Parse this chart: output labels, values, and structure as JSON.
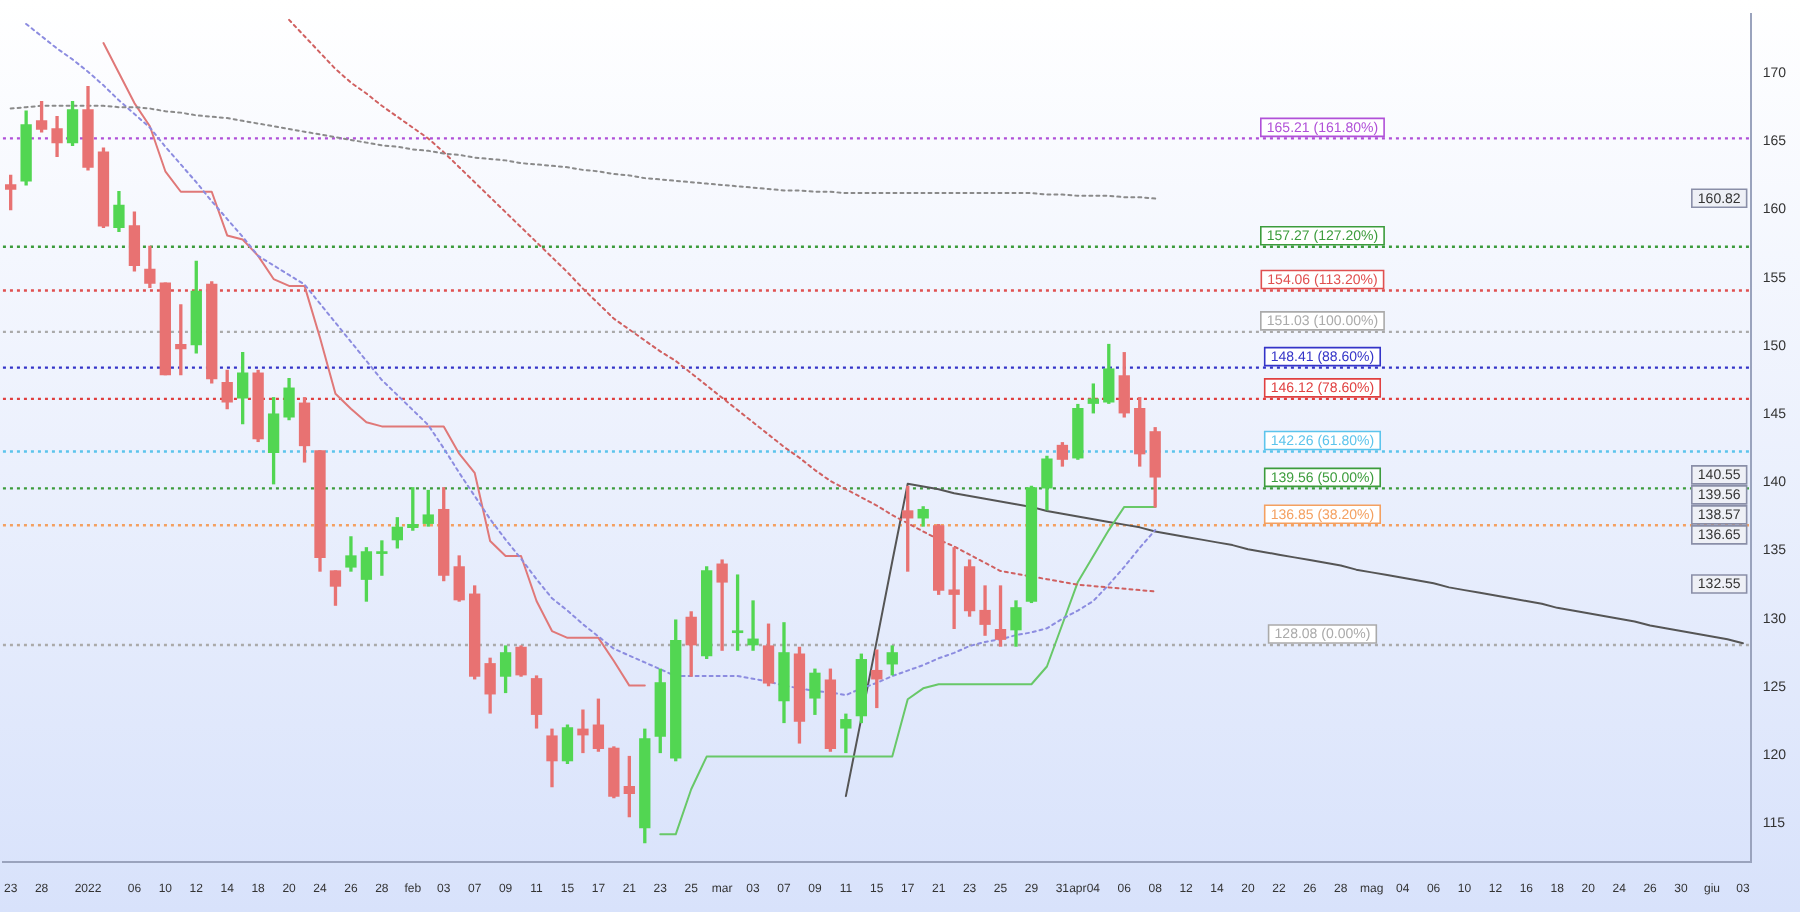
{
  "chart_data": {
    "type": "candlestick",
    "categories": [
      "23",
      null,
      "28",
      null,
      null,
      "2022",
      null,
      null,
      "06",
      null,
      "10",
      null,
      "12",
      null,
      "14",
      null,
      "18",
      null,
      "20",
      null,
      "24",
      null,
      "26",
      null,
      "28",
      null,
      "feb",
      null,
      "03",
      null,
      "07",
      null,
      "09",
      null,
      "11",
      null,
      "15",
      null,
      "17",
      null,
      "21",
      null,
      "23",
      null,
      "25",
      null,
      "mar",
      null,
      "03",
      null,
      "07",
      null,
      "09",
      null,
      "11",
      null,
      "15",
      null,
      "17",
      null,
      "21",
      null,
      "23",
      null,
      "25",
      null,
      "29",
      null,
      "31",
      "apr",
      "04",
      null,
      "06",
      null,
      "08",
      null,
      "12",
      null,
      "14",
      null,
      "20",
      null,
      "22",
      null,
      "26",
      null,
      "28",
      null,
      "mag",
      null,
      "04",
      null,
      "06",
      null,
      "10",
      null,
      "12",
      null,
      "16",
      null,
      "18",
      null,
      "20",
      null,
      "24",
      null,
      "26",
      null,
      "30",
      null,
      "giu",
      null,
      "03"
    ],
    "ohlc": [
      [
        161.8,
        162.5,
        160.0,
        161.5
      ],
      [
        162.1,
        167.2,
        161.8,
        166.2
      ],
      [
        166.5,
        167.9,
        165.7,
        165.9
      ],
      [
        165.9,
        166.8,
        163.9,
        164.9
      ],
      [
        164.9,
        167.9,
        164.7,
        167.3
      ],
      [
        167.3,
        169.0,
        162.9,
        163.1
      ],
      [
        164.2,
        164.5,
        158.7,
        158.8
      ],
      [
        158.7,
        161.3,
        158.4,
        160.3
      ],
      [
        158.8,
        159.8,
        155.5,
        155.9
      ],
      [
        155.6,
        157.3,
        154.3,
        154.6
      ],
      [
        154.6,
        154.6,
        147.9,
        147.9
      ],
      [
        150.1,
        153.0,
        147.9,
        149.8
      ],
      [
        150.1,
        156.2,
        149.5,
        154.0
      ],
      [
        154.5,
        154.7,
        147.3,
        147.6
      ],
      [
        147.3,
        148.2,
        145.4,
        145.9
      ],
      [
        146.2,
        149.5,
        144.3,
        148.0
      ],
      [
        148.0,
        148.2,
        143.0,
        143.2
      ],
      [
        142.2,
        146.2,
        139.9,
        145.0
      ],
      [
        144.8,
        147.6,
        144.6,
        146.9
      ],
      [
        145.8,
        146.2,
        141.5,
        142.7
      ],
      [
        142.3,
        142.3,
        133.5,
        134.5
      ],
      [
        133.5,
        133.5,
        131.0,
        132.4
      ],
      [
        133.8,
        136.0,
        133.5,
        134.6
      ],
      [
        132.9,
        135.2,
        131.3,
        134.9
      ],
      [
        134.8,
        135.7,
        133.2,
        134.9
      ],
      [
        135.8,
        137.4,
        135.2,
        136.7
      ],
      [
        136.7,
        139.6,
        136.5,
        136.9
      ],
      [
        137.0,
        139.4,
        136.8,
        137.6
      ],
      [
        138.0,
        139.6,
        132.8,
        133.2
      ],
      [
        133.8,
        134.6,
        131.3,
        131.4
      ],
      [
        131.8,
        132.4,
        125.6,
        125.8
      ],
      [
        126.7,
        127.1,
        123.1,
        124.5
      ],
      [
        125.8,
        128.0,
        124.6,
        127.5
      ],
      [
        127.9,
        128.0,
        125.8,
        125.9
      ],
      [
        125.6,
        125.8,
        122.0,
        123.0
      ],
      [
        121.4,
        121.9,
        117.7,
        119.6
      ],
      [
        119.6,
        122.2,
        119.4,
        122.0
      ],
      [
        121.9,
        123.3,
        120.2,
        121.5
      ],
      [
        122.2,
        124.1,
        120.3,
        120.5
      ],
      [
        120.5,
        120.6,
        116.9,
        117.0
      ],
      [
        117.7,
        119.9,
        115.5,
        117.2
      ],
      [
        114.7,
        121.9,
        113.6,
        121.2
      ],
      [
        121.4,
        126.3,
        120.2,
        125.3
      ],
      [
        119.8,
        129.9,
        119.6,
        128.4
      ],
      [
        130.1,
        130.5,
        125.8,
        128.1
      ],
      [
        127.3,
        133.8,
        127.1,
        133.5
      ],
      [
        134.0,
        134.3,
        127.7,
        132.7
      ],
      [
        129.0,
        133.2,
        127.7,
        129.1
      ],
      [
        128.1,
        131.3,
        127.7,
        128.5
      ],
      [
        128.0,
        129.6,
        125.1,
        125.3
      ],
      [
        124.0,
        129.7,
        122.4,
        127.5
      ],
      [
        127.4,
        127.9,
        120.9,
        122.5
      ],
      [
        124.2,
        126.3,
        123.0,
        126.0
      ],
      [
        125.5,
        126.3,
        120.3,
        120.5
      ],
      [
        122.0,
        123.0,
        120.2,
        122.6
      ],
      [
        122.9,
        127.4,
        122.4,
        127.0
      ],
      [
        126.2,
        127.7,
        123.5,
        125.6
      ],
      [
        126.7,
        128.0,
        125.9,
        127.5
      ],
      [
        137.9,
        139.7,
        133.5,
        137.4
      ],
      [
        137.4,
        138.2,
        136.8,
        138.0
      ],
      [
        136.8,
        136.9,
        131.8,
        132.1
      ],
      [
        132.1,
        135.2,
        129.3,
        131.8
      ],
      [
        133.8,
        134.3,
        130.2,
        130.6
      ],
      [
        130.6,
        132.4,
        128.8,
        129.6
      ],
      [
        129.2,
        132.4,
        128.0,
        128.5
      ],
      [
        129.2,
        131.3,
        128.0,
        130.8
      ],
      [
        131.3,
        139.7,
        131.2,
        139.6
      ],
      [
        139.6,
        141.9,
        138.0,
        141.7
      ],
      [
        142.7,
        142.9,
        141.2,
        141.7
      ],
      [
        141.8,
        145.7,
        141.7,
        145.4
      ],
      [
        145.8,
        147.2,
        145.1,
        146.1
      ],
      [
        145.9,
        150.1,
        145.8,
        148.3
      ],
      [
        147.8,
        149.5,
        144.8,
        145.1
      ],
      [
        145.4,
        146.2,
        141.2,
        142.1
      ],
      [
        143.7,
        144.0,
        138.2,
        140.4
      ],
      null,
      null,
      null,
      null,
      null,
      null,
      null,
      null,
      null,
      null,
      null,
      null,
      null,
      null,
      null,
      null,
      null,
      null,
      null,
      null,
      null,
      null,
      null,
      null,
      null,
      null,
      null,
      null,
      null,
      null,
      null,
      null,
      null,
      null,
      null,
      null,
      null,
      null
    ],
    "series": [
      {
        "type": "line",
        "color": "#8a8a8a",
        "line_style": "dotted",
        "values": [
          167.4,
          167.5,
          167.6,
          167.6,
          167.6,
          167.6,
          167.6,
          167.5,
          167.5,
          167.4,
          167.2,
          167.1,
          166.9,
          166.8,
          166.7,
          166.5,
          166.3,
          166.1,
          165.9,
          165.7,
          165.5,
          165.3,
          165.1,
          164.9,
          164.7,
          164.6,
          164.4,
          164.3,
          164.1,
          164.0,
          163.8,
          163.7,
          163.6,
          163.4,
          163.3,
          163.2,
          163.1,
          162.9,
          162.8,
          162.6,
          162.5,
          162.3,
          162.2,
          162.1,
          162.0,
          161.9,
          161.8,
          161.7,
          161.6,
          161.5,
          161.4,
          161.4,
          161.3,
          161.3,
          161.2,
          161.2,
          161.2,
          161.2,
          161.2,
          161.2,
          161.2,
          161.2,
          161.2,
          161.2,
          161.2,
          161.2,
          161.2,
          161.1,
          161.1,
          161.0,
          161.0,
          161.0,
          160.9,
          160.9,
          160.8,
          null,
          null,
          null,
          null,
          null,
          null,
          null,
          null,
          null,
          null,
          null,
          null,
          null,
          null,
          null,
          null,
          null,
          null,
          null,
          null,
          null,
          null,
          null,
          null,
          null,
          null,
          null,
          null,
          null,
          null,
          null,
          null,
          null,
          null,
          null,
          null,
          null,
          null
        ]
      },
      {
        "type": "line",
        "color": "#d06060",
        "line_style": "dotted",
        "values": [
          null,
          null,
          null,
          null,
          null,
          null,
          null,
          null,
          null,
          null,
          null,
          null,
          null,
          null,
          null,
          null,
          null,
          null,
          173.9,
          172.7,
          171.5,
          170.3,
          169.3,
          168.5,
          167.6,
          166.8,
          166.0,
          165.2,
          164.2,
          163.1,
          162.0,
          160.9,
          159.8,
          158.7,
          157.6,
          156.5,
          155.4,
          154.2,
          153.1,
          152.0,
          151.2,
          150.4,
          149.6,
          148.9,
          148.0,
          147.1,
          146.2,
          145.3,
          144.4,
          143.5,
          142.6,
          141.8,
          140.9,
          140.1,
          139.5,
          138.9,
          138.3,
          137.6,
          137.0,
          136.4,
          135.8,
          135.3,
          134.7,
          134.1,
          133.5,
          133.3,
          133.1,
          132.9,
          132.7,
          132.5,
          132.4,
          132.3,
          132.2,
          132.1,
          132.0,
          null,
          null,
          null,
          null,
          null,
          null,
          null,
          null,
          null,
          null,
          null,
          null,
          null,
          null,
          null,
          null,
          null,
          null,
          null,
          null,
          null,
          null,
          null,
          null,
          null,
          null,
          null,
          null,
          null,
          null,
          null,
          null,
          null,
          null,
          null,
          null,
          null,
          null
        ]
      },
      {
        "type": "line",
        "color": "#8c8ce0",
        "line_style": "dotted",
        "values": [
          null,
          173.6,
          172.7,
          171.8,
          171.0,
          170.1,
          169.1,
          168.0,
          167.0,
          166.0,
          164.6,
          163.3,
          162.0,
          160.6,
          159.3,
          158.0,
          156.6,
          155.9,
          155.2,
          154.5,
          153.1,
          151.7,
          150.3,
          148.9,
          147.5,
          146.4,
          145.3,
          144.2,
          142.5,
          140.7,
          139.0,
          137.3,
          135.8,
          134.4,
          132.9,
          131.5,
          130.6,
          129.6,
          128.7,
          127.8,
          127.3,
          126.8,
          126.3,
          125.8,
          125.8,
          125.8,
          125.8,
          125.8,
          125.6,
          125.4,
          125.1,
          124.9,
          124.7,
          124.6,
          124.4,
          124.9,
          125.3,
          125.8,
          126.2,
          126.6,
          127.1,
          127.5,
          128.0,
          128.3,
          128.5,
          128.8,
          129.0,
          129.3,
          130.0,
          130.6,
          131.3,
          132.5,
          133.8,
          135.2,
          136.5,
          null,
          null,
          null,
          null,
          null,
          null,
          null,
          null,
          null,
          null,
          null,
          null,
          null,
          null,
          null,
          null,
          null,
          null,
          null,
          null,
          null,
          null,
          null,
          null,
          null,
          null,
          null,
          null,
          null,
          null,
          null,
          null,
          null,
          null,
          null,
          null,
          null,
          null
        ]
      },
      {
        "type": "line",
        "color": "#e07878",
        "line_style": "solid",
        "values": [
          null,
          null,
          null,
          null,
          null,
          null,
          172.2,
          170.0,
          167.8,
          166.1,
          162.8,
          161.3,
          161.3,
          161.3,
          158.1,
          157.8,
          156.6,
          154.9,
          154.4,
          154.4,
          150.6,
          146.5,
          145.4,
          144.4,
          144.1,
          144.1,
          144.1,
          144.1,
          144.1,
          142.1,
          140.7,
          135.7,
          134.6,
          134.6,
          131.3,
          129.1,
          128.6,
          128.6,
          128.6,
          126.9,
          125.1,
          125.1,
          null,
          null,
          null,
          null,
          null,
          null,
          null,
          null,
          null,
          null,
          null,
          null,
          null,
          null,
          null,
          null,
          null,
          null,
          null,
          null,
          null,
          null,
          null,
          null,
          null,
          null,
          null,
          null,
          null,
          null,
          null,
          null,
          null,
          null,
          null,
          null,
          null,
          null,
          null,
          null,
          null,
          null,
          null,
          null,
          null,
          null,
          null,
          null,
          null,
          null,
          null,
          null,
          null,
          null,
          null,
          null,
          null,
          null,
          null,
          null,
          null,
          null,
          null,
          null,
          null,
          null,
          null,
          null,
          null,
          null,
          null
        ]
      },
      {
        "type": "line",
        "color": "#68c868",
        "line_style": "solid",
        "values": [
          null,
          null,
          null,
          null,
          null,
          null,
          null,
          null,
          null,
          null,
          null,
          null,
          null,
          null,
          null,
          null,
          null,
          null,
          null,
          null,
          null,
          null,
          null,
          null,
          null,
          null,
          null,
          null,
          null,
          null,
          null,
          null,
          null,
          null,
          null,
          null,
          null,
          null,
          null,
          null,
          null,
          null,
          114.2,
          114.2,
          117.5,
          119.9,
          119.9,
          119.9,
          119.9,
          119.9,
          119.9,
          119.9,
          119.9,
          119.9,
          119.9,
          119.9,
          119.9,
          119.9,
          124.1,
          124.9,
          125.2,
          125.2,
          125.2,
          125.2,
          125.2,
          125.2,
          125.2,
          126.5,
          129.6,
          132.7,
          134.6,
          136.5,
          138.2,
          138.2,
          138.2,
          null,
          null,
          null,
          null,
          null,
          null,
          null,
          null,
          null,
          null,
          null,
          null,
          null,
          null,
          null,
          null,
          null,
          null,
          null,
          null,
          null,
          null,
          null,
          null,
          null,
          null,
          null,
          null,
          null,
          null,
          null,
          null,
          null,
          null,
          null,
          null,
          null,
          null
        ]
      },
      {
        "type": "line",
        "color": "#555555",
        "line_style": "solid",
        "values": [
          null,
          null,
          null,
          null,
          null,
          null,
          null,
          null,
          null,
          null,
          null,
          null,
          null,
          null,
          null,
          null,
          null,
          null,
          null,
          null,
          null,
          null,
          null,
          null,
          null,
          null,
          null,
          null,
          null,
          null,
          null,
          null,
          null,
          null,
          null,
          null,
          null,
          null,
          null,
          null,
          null,
          null,
          null,
          null,
          null,
          null,
          null,
          null,
          null,
          null,
          null,
          null,
          null,
          null,
          117.0,
          122.7,
          128.4,
          134.2,
          139.9,
          139.7,
          139.5,
          139.2,
          139.0,
          138.8,
          138.6,
          138.4,
          138.2,
          137.9,
          137.7,
          137.5,
          137.3,
          137.1,
          136.9,
          136.7,
          136.4,
          136.2,
          136.0,
          135.8,
          135.6,
          135.4,
          135.1,
          134.9,
          134.7,
          134.5,
          134.3,
          134.1,
          133.9,
          133.6,
          133.4,
          133.2,
          133.0,
          132.8,
          132.6,
          132.3,
          132.1,
          131.9,
          131.7,
          131.5,
          131.3,
          131.1,
          130.8,
          130.6,
          130.4,
          130.2,
          130.0,
          129.8,
          129.5,
          129.3,
          129.1,
          128.9,
          128.7,
          128.5,
          128.2
        ]
      }
    ],
    "ref_lines": [
      {
        "axis": "y",
        "value": 165.21,
        "label": "165.21 (161.80%)",
        "color": "#b050d8",
        "line_style": "dotted"
      },
      {
        "axis": "y",
        "value": 157.27,
        "label": "157.27 (127.20%)",
        "color": "#3c9c3c",
        "line_style": "dotted"
      },
      {
        "axis": "y",
        "value": 154.06,
        "label": "154.06 (113.20%)",
        "color": "#e05050",
        "line_style": "dotted"
      },
      {
        "axis": "y",
        "value": 151.03,
        "label": "151.03 (100.00%)",
        "color": "#aaaaaa",
        "line_style": "dotted"
      },
      {
        "axis": "y",
        "value": 148.41,
        "label": "148.41 (88.60%)",
        "color": "#3434c8",
        "line_style": "dotted"
      },
      {
        "axis": "y",
        "value": 146.12,
        "label": "146.12 (78.60%)",
        "color": "#e04040",
        "line_style": "dotted"
      },
      {
        "axis": "y",
        "value": 142.26,
        "label": "142.26 (61.80%)",
        "color": "#5cc4ec",
        "line_style": "dotted"
      },
      {
        "axis": "y",
        "value": 139.56,
        "label": "139.56 (50.00%)",
        "color": "#3c9c3c",
        "line_style": "dotted"
      },
      {
        "axis": "y",
        "value": 136.85,
        "label": "136.85 (38.20%)",
        "color": "#f4a060",
        "line_style": "dotted"
      },
      {
        "axis": "y",
        "value": 128.08,
        "label": "128.08 (0.00%)",
        "color": "#aaaaaa",
        "line_style": "dotted"
      }
    ],
    "annotations": [
      "160.82",
      "140.55",
      "139.56",
      "138.57",
      "136.65",
      "132.55"
    ],
    "ylim": [
      112.2,
      174.3
    ],
    "yticks": [
      115,
      120,
      125,
      130,
      135,
      140,
      145,
      150,
      155,
      160,
      165,
      170
    ],
    "grid": false,
    "legend": false
  }
}
